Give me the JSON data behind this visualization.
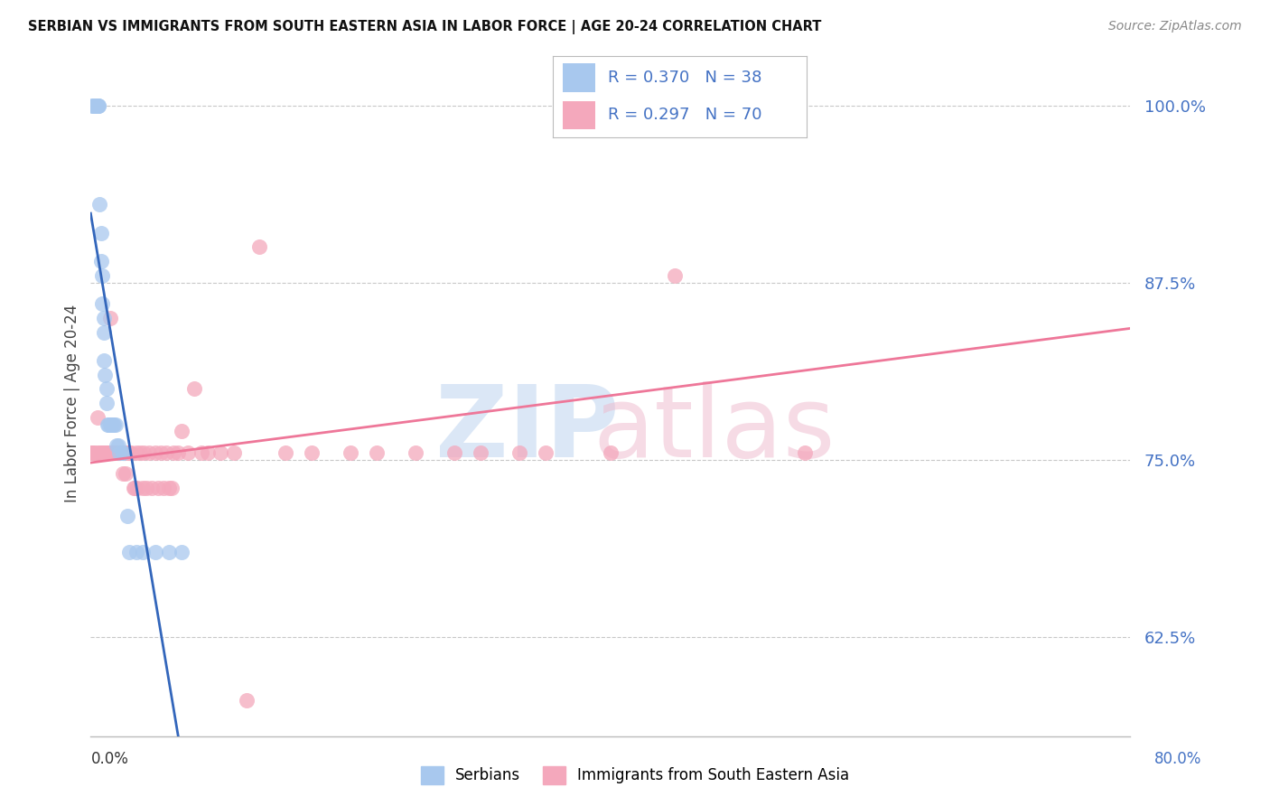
{
  "title": "SERBIAN VS IMMIGRANTS FROM SOUTH EASTERN ASIA IN LABOR FORCE | AGE 20-24 CORRELATION CHART",
  "source": "Source: ZipAtlas.com",
  "ylabel": "In Labor Force | Age 20-24",
  "y_ticks": [
    0.625,
    0.75,
    0.875,
    1.0
  ],
  "y_tick_labels": [
    "62.5%",
    "75.0%",
    "87.5%",
    "100.0%"
  ],
  "x_min": 0.0,
  "x_max": 0.8,
  "y_min": 0.555,
  "y_max": 1.025,
  "legend_label1": "Serbians",
  "legend_label2": "Immigrants from South Eastern Asia",
  "blue_color": "#A8C8EE",
  "pink_color": "#F4A8BC",
  "blue_line_color": "#3366BB",
  "pink_line_color": "#EE7799",
  "blue_R": "0.370",
  "blue_N": "38",
  "pink_R": "0.297",
  "pink_N": "70",
  "serbians_x": [
    0.001,
    0.002,
    0.003,
    0.003,
    0.005,
    0.005,
    0.006,
    0.006,
    0.007,
    0.008,
    0.008,
    0.009,
    0.009,
    0.01,
    0.01,
    0.01,
    0.011,
    0.012,
    0.012,
    0.013,
    0.014,
    0.015,
    0.016,
    0.017,
    0.018,
    0.019,
    0.02,
    0.021,
    0.022,
    0.025,
    0.025,
    0.028,
    0.03,
    0.035,
    0.04,
    0.05,
    0.06,
    0.07
  ],
  "serbians_y": [
    1.0,
    1.0,
    1.0,
    1.0,
    1.0,
    1.0,
    1.0,
    1.0,
    0.93,
    0.91,
    0.89,
    0.88,
    0.86,
    0.85,
    0.84,
    0.82,
    0.81,
    0.8,
    0.79,
    0.775,
    0.775,
    0.775,
    0.775,
    0.775,
    0.775,
    0.775,
    0.76,
    0.76,
    0.755,
    0.755,
    0.755,
    0.71,
    0.685,
    0.685,
    0.685,
    0.685,
    0.685,
    0.685
  ],
  "immigrants_x": [
    0.0,
    0.001,
    0.002,
    0.003,
    0.005,
    0.005,
    0.007,
    0.008,
    0.009,
    0.01,
    0.011,
    0.012,
    0.013,
    0.014,
    0.015,
    0.016,
    0.017,
    0.018,
    0.019,
    0.02,
    0.021,
    0.022,
    0.023,
    0.025,
    0.026,
    0.027,
    0.028,
    0.03,
    0.031,
    0.033,
    0.034,
    0.035,
    0.036,
    0.038,
    0.04,
    0.041,
    0.043,
    0.045,
    0.047,
    0.05,
    0.052,
    0.054,
    0.056,
    0.058,
    0.06,
    0.062,
    0.064,
    0.067,
    0.07,
    0.075,
    0.08,
    0.085,
    0.09,
    0.1,
    0.11,
    0.12,
    0.13,
    0.15,
    0.17,
    0.2,
    0.22,
    0.25,
    0.28,
    0.3,
    0.33,
    0.35,
    0.37,
    0.4,
    0.45,
    0.55
  ],
  "immigrants_y": [
    0.755,
    0.755,
    0.755,
    0.755,
    0.755,
    0.78,
    0.755,
    0.755,
    0.755,
    0.755,
    0.755,
    0.755,
    0.755,
    0.755,
    0.85,
    0.755,
    0.755,
    0.755,
    0.755,
    0.755,
    0.755,
    0.755,
    0.755,
    0.74,
    0.755,
    0.74,
    0.755,
    0.755,
    0.755,
    0.73,
    0.73,
    0.755,
    0.73,
    0.755,
    0.73,
    0.755,
    0.73,
    0.755,
    0.73,
    0.755,
    0.73,
    0.755,
    0.73,
    0.755,
    0.73,
    0.73,
    0.755,
    0.755,
    0.77,
    0.755,
    0.8,
    0.755,
    0.755,
    0.755,
    0.755,
    0.58,
    0.9,
    0.755,
    0.755,
    0.755,
    0.755,
    0.755,
    0.755,
    0.755,
    0.755,
    0.755,
    1.0,
    0.755,
    0.88,
    0.755
  ]
}
